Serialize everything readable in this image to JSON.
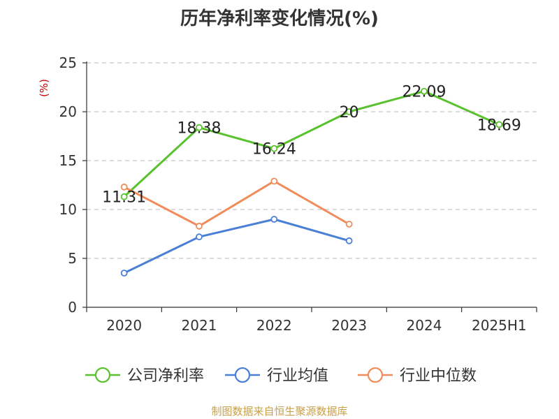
{
  "chart_data": {
    "type": "line",
    "title": "历年净利率变化情况(%)",
    "ylabel": "(%)",
    "categories": [
      "2020",
      "2021",
      "2022",
      "2023",
      "2024",
      "2025H1"
    ],
    "y_ticks": [
      "0",
      "5",
      "10",
      "15",
      "20",
      "25"
    ],
    "ylim": [
      0,
      25
    ],
    "grid": true,
    "legend_position": "bottom",
    "series": [
      {
        "name": "公司净利率",
        "color": "#5ac12e",
        "values": [
          11.31,
          18.38,
          16.24,
          20,
          22.09,
          18.69
        ],
        "labels": [
          "11.31",
          "18.38",
          "16.24",
          "20",
          "22.09",
          "18.69"
        ]
      },
      {
        "name": "行业均值",
        "color": "#4a7fd6",
        "values": [
          3.5,
          7.2,
          9.0,
          6.8,
          null,
          null
        ]
      },
      {
        "name": "行业中位数",
        "color": "#f08c5a",
        "values": [
          12.3,
          8.3,
          12.9,
          8.5,
          null,
          null
        ]
      }
    ]
  },
  "source_text": "制图数据来自恒生聚源数据库"
}
